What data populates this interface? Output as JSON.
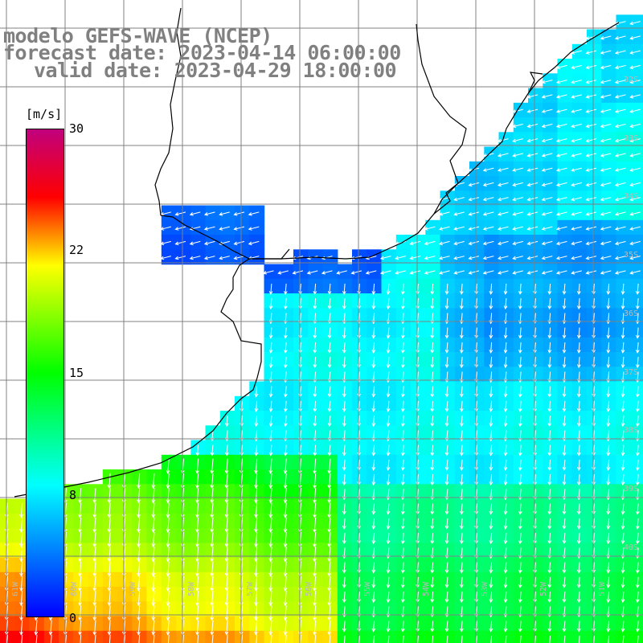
{
  "title": {
    "line1": "modelo GEFS-WAVE (NCEP)",
    "line2": "forecast date: 2023-04-14 06:00:00",
    "line3": "valid date: 2023-04-29 18:00:00"
  },
  "colorbar": {
    "unit": "[m/s]",
    "ticks": [
      "30",
      "22",
      "15",
      "8",
      "0"
    ],
    "colors": [
      "#0000ff",
      "#00ffff",
      "#00ff00",
      "#ffff00",
      "#ff0000",
      "#c0007f"
    ]
  },
  "map": {
    "lat_labels": [
      "32S",
      "33S",
      "34S",
      "35S",
      "36S",
      "37S",
      "38S",
      "39S",
      "40S"
    ],
    "lon_labels": [
      "61W",
      "60W",
      "59W",
      "58W",
      "57W",
      "56W",
      "55W",
      "54W",
      "53W",
      "52W",
      "51W"
    ],
    "colors": {
      "land": "#ffffff",
      "coast": "#000000",
      "grid": "#808080",
      "arrows": "#ffffff",
      "label": "#b9b9b9"
    }
  }
}
